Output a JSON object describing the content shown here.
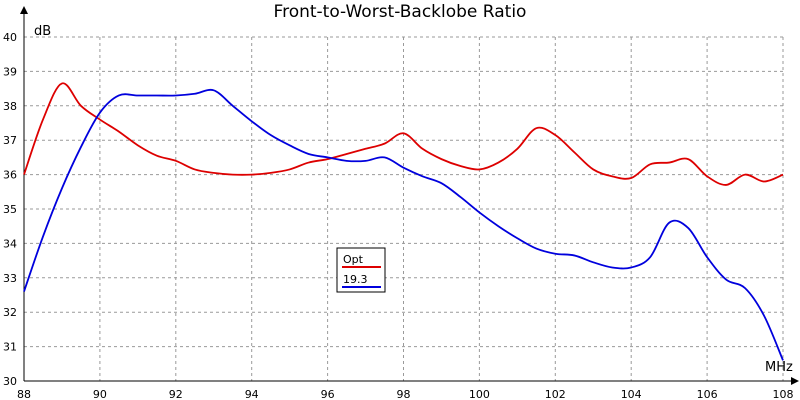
{
  "chart_data": {
    "type": "line",
    "title": "Front-to-Worst-Backlobe Ratio",
    "xlabel": "MHz",
    "ylabel": "dB",
    "xlim": [
      88,
      108
    ],
    "ylim": [
      30,
      40
    ],
    "xticks": [
      88,
      90,
      92,
      94,
      96,
      98,
      100,
      102,
      104,
      106,
      108
    ],
    "yticks": [
      30,
      31,
      32,
      33,
      34,
      35,
      36,
      37,
      38,
      39,
      40
    ],
    "grid": true,
    "legend": "center",
    "series": [
      {
        "name": "Opt",
        "color": "#dd0000",
        "x": [
          88,
          88.5,
          89,
          89.5,
          90,
          90.5,
          91,
          91.5,
          92,
          92.5,
          93,
          93.5,
          94,
          94.5,
          95,
          95.5,
          96,
          96.5,
          97,
          97.5,
          98,
          98.5,
          99,
          99.5,
          100,
          100.5,
          101,
          101.5,
          102,
          102.5,
          103,
          103.5,
          104,
          104.5,
          105,
          105.5,
          106,
          106.5,
          107,
          107.5,
          108
        ],
        "y": [
          36.0,
          37.6,
          38.65,
          38.0,
          37.6,
          37.25,
          36.85,
          36.55,
          36.4,
          36.15,
          36.05,
          36.0,
          36.0,
          36.05,
          36.15,
          36.35,
          36.45,
          36.6,
          36.75,
          36.9,
          37.2,
          36.75,
          36.45,
          36.25,
          36.15,
          36.35,
          36.75,
          37.35,
          37.15,
          36.65,
          36.15,
          35.95,
          35.9,
          36.3,
          36.35,
          36.45,
          35.95,
          35.7,
          36.0,
          35.8,
          36.0
        ]
      },
      {
        "name": "19.3",
        "color": "#0000dd",
        "x": [
          88,
          88.5,
          89,
          89.5,
          90,
          90.5,
          91,
          91.5,
          92,
          92.5,
          93,
          93.5,
          94,
          94.5,
          95,
          95.5,
          96,
          96.5,
          97,
          97.5,
          98,
          98.5,
          99,
          99.5,
          100,
          100.5,
          101,
          101.5,
          102,
          102.5,
          103,
          103.5,
          104,
          104.5,
          105,
          105.5,
          106,
          106.5,
          107,
          107.5,
          108
        ],
        "y": [
          32.6,
          34.2,
          35.6,
          36.8,
          37.8,
          38.3,
          38.3,
          38.3,
          38.3,
          38.35,
          38.45,
          38.0,
          37.55,
          37.15,
          36.85,
          36.6,
          36.5,
          36.4,
          36.4,
          36.5,
          36.2,
          35.95,
          35.75,
          35.35,
          34.9,
          34.5,
          34.15,
          33.85,
          33.7,
          33.65,
          33.45,
          33.3,
          33.3,
          33.6,
          34.6,
          34.45,
          33.6,
          32.95,
          32.7,
          31.9,
          30.6
        ]
      }
    ]
  }
}
